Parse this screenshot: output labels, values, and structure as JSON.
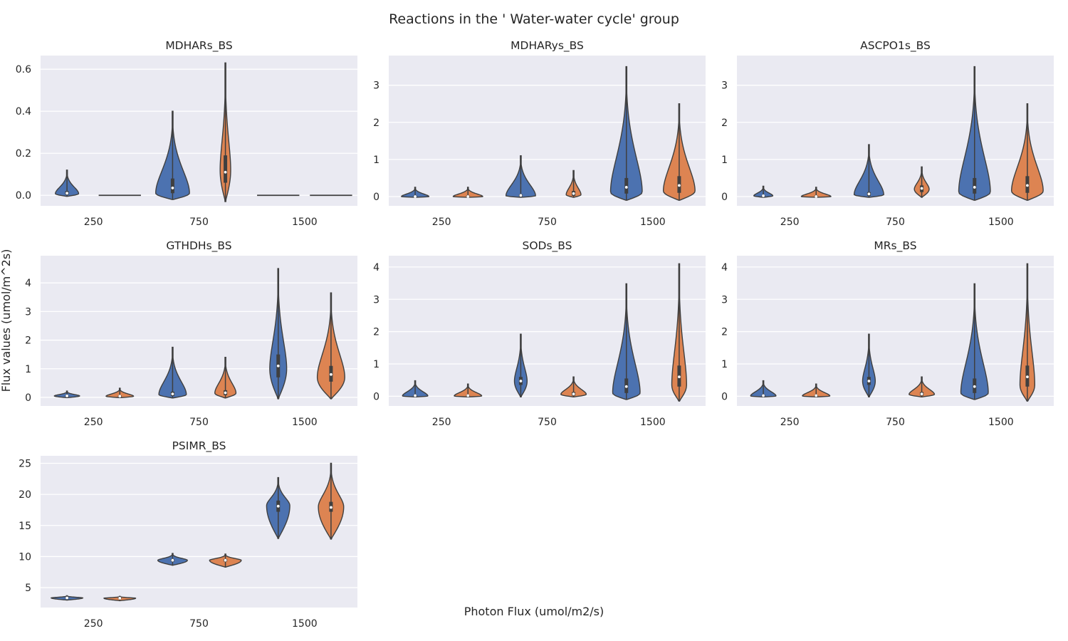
{
  "figure": {
    "title": "Reactions in the ' Water-water cycle' group",
    "xlabel": "Photon Flux (umol/m2/s)",
    "ylabel": "Flux values (umol/m^2s)"
  },
  "colors": {
    "blue": "#4c72b0",
    "orange": "#dd8452",
    "panel_bg": "#eaeaf2",
    "grid": "#ffffff",
    "line": "#3f3f3f"
  },
  "chart_data": [
    {
      "type": "violin",
      "title": "MDHARs_BS",
      "categories": [
        "250",
        "750",
        "1500"
      ],
      "ylim": [
        -0.05,
        0.665
      ],
      "yticks": [
        0.0,
        0.2,
        0.4,
        0.6
      ],
      "ytick_labels": [
        "0.0",
        "0.2",
        "0.4",
        "0.6"
      ],
      "series": [
        {
          "color": "blue",
          "values": [
            {
              "min": -0.005,
              "max": 0.12,
              "median": 0.01,
              "q1": 0.003,
              "q3": 0.02,
              "mode": 0.008,
              "width": 0.55
            },
            {
              "min": -0.02,
              "max": 0.4,
              "median": 0.035,
              "q1": 0.01,
              "q3": 0.08,
              "mode": 0.01,
              "width": 0.8
            },
            {
              "min": 0.0,
              "max": 0.0,
              "median": 0.0,
              "q1": 0.0,
              "q3": 0.0,
              "mode": 0.0,
              "width": 0.0
            }
          ]
        },
        {
          "color": "orange",
          "values": [
            {
              "min": 0.0,
              "max": 0.0,
              "median": 0.0,
              "q1": 0.0,
              "q3": 0.0,
              "mode": 0.0,
              "width": 0.0
            },
            {
              "min": -0.03,
              "max": 0.63,
              "median": 0.11,
              "q1": 0.06,
              "q3": 0.19,
              "mode": 0.12,
              "width": 0.25
            },
            {
              "min": 0.0,
              "max": 0.0,
              "median": 0.0,
              "q1": 0.0,
              "q3": 0.0,
              "mode": 0.0,
              "width": 0.0
            }
          ]
        }
      ]
    },
    {
      "type": "violin",
      "title": "MDHARys_BS",
      "categories": [
        "250",
        "750",
        "1500"
      ],
      "ylim": [
        -0.25,
        3.8
      ],
      "yticks": [
        0,
        1,
        2,
        3
      ],
      "ytick_labels": [
        "0",
        "1",
        "2",
        "3"
      ],
      "series": [
        {
          "color": "blue",
          "values": [
            {
              "min": -0.02,
              "max": 0.25,
              "median": 0.0,
              "q1": 0.0,
              "q3": 0.02,
              "mode": 0.0,
              "width": 0.65
            },
            {
              "min": -0.02,
              "max": 1.1,
              "median": 0.03,
              "q1": 0.0,
              "q3": 0.06,
              "mode": 0.02,
              "width": 0.7
            },
            {
              "min": -0.1,
              "max": 3.5,
              "median": 0.25,
              "q1": 0.08,
              "q3": 0.5,
              "mode": 0.12,
              "width": 0.75
            }
          ]
        },
        {
          "color": "orange",
          "values": [
            {
              "min": -0.02,
              "max": 0.25,
              "median": 0.0,
              "q1": 0.0,
              "q3": 0.02,
              "mode": 0.0,
              "width": 0.7
            },
            {
              "min": -0.02,
              "max": 0.7,
              "median": 0.08,
              "q1": 0.02,
              "q3": 0.15,
              "mode": 0.05,
              "width": 0.35
            },
            {
              "min": -0.1,
              "max": 2.5,
              "median": 0.3,
              "q1": 0.1,
              "q3": 0.55,
              "mode": 0.15,
              "width": 0.75
            }
          ]
        }
      ]
    },
    {
      "type": "violin",
      "title": "ASCPO1s_BS",
      "categories": [
        "250",
        "750",
        "1500"
      ],
      "ylim": [
        -0.25,
        3.8
      ],
      "yticks": [
        0,
        1,
        2,
        3
      ],
      "ytick_labels": [
        "0",
        "1",
        "2",
        "3"
      ],
      "series": [
        {
          "color": "blue",
          "values": [
            {
              "min": -0.02,
              "max": 0.28,
              "median": 0.02,
              "q1": 0.0,
              "q3": 0.04,
              "mode": 0.02,
              "width": 0.45
            },
            {
              "min": -0.02,
              "max": 1.4,
              "median": 0.07,
              "q1": 0.02,
              "q3": 0.12,
              "mode": 0.05,
              "width": 0.7
            },
            {
              "min": -0.1,
              "max": 3.5,
              "median": 0.25,
              "q1": 0.08,
              "q3": 0.5,
              "mode": 0.12,
              "width": 0.75
            }
          ]
        },
        {
          "color": "orange",
          "values": [
            {
              "min": -0.02,
              "max": 0.25,
              "median": 0.0,
              "q1": 0.0,
              "q3": 0.02,
              "mode": 0.0,
              "width": 0.7
            },
            {
              "min": -0.02,
              "max": 0.8,
              "median": 0.22,
              "q1": 0.12,
              "q3": 0.3,
              "mode": 0.2,
              "width": 0.35
            },
            {
              "min": -0.1,
              "max": 2.5,
              "median": 0.3,
              "q1": 0.1,
              "q3": 0.55,
              "mode": 0.15,
              "width": 0.75
            }
          ]
        }
      ]
    },
    {
      "type": "violin",
      "title": "GTHDHs_BS",
      "categories": [
        "250",
        "750",
        "1500"
      ],
      "ylim": [
        -0.3,
        4.95
      ],
      "yticks": [
        0,
        1,
        2,
        3,
        4
      ],
      "ytick_labels": [
        "0",
        "1",
        "2",
        "3",
        "4"
      ],
      "series": [
        {
          "color": "blue",
          "values": [
            {
              "min": -0.01,
              "max": 0.22,
              "median": 0.05,
              "q1": 0.02,
              "q3": 0.08,
              "mode": 0.05,
              "width": 0.6
            },
            {
              "min": -0.02,
              "max": 1.75,
              "median": 0.12,
              "q1": 0.05,
              "q3": 0.2,
              "mode": 0.1,
              "width": 0.65
            },
            {
              "min": -0.05,
              "max": 4.5,
              "median": 1.1,
              "q1": 0.7,
              "q3": 1.5,
              "mode": 1.0,
              "width": 0.4
            }
          ]
        },
        {
          "color": "orange",
          "values": [
            {
              "min": -0.01,
              "max": 0.32,
              "median": 0.04,
              "q1": 0.01,
              "q3": 0.07,
              "mode": 0.04,
              "width": 0.65
            },
            {
              "min": -0.02,
              "max": 1.4,
              "median": 0.16,
              "q1": 0.08,
              "q3": 0.25,
              "mode": 0.15,
              "width": 0.5
            },
            {
              "min": -0.05,
              "max": 3.65,
              "median": 0.8,
              "q1": 0.55,
              "q3": 1.1,
              "mode": 0.7,
              "width": 0.65
            }
          ]
        }
      ]
    },
    {
      "type": "violin",
      "title": "SODs_BS",
      "categories": [
        "250",
        "750",
        "1500"
      ],
      "ylim": [
        -0.3,
        4.35
      ],
      "yticks": [
        0,
        1,
        2,
        3,
        4
      ],
      "ytick_labels": [
        "0",
        "1",
        "2",
        "3",
        "4"
      ],
      "series": [
        {
          "color": "blue",
          "values": [
            {
              "min": -0.02,
              "max": 0.48,
              "median": 0.02,
              "q1": 0.0,
              "q3": 0.05,
              "mode": 0.01,
              "width": 0.6
            },
            {
              "min": -0.02,
              "max": 1.92,
              "median": 0.47,
              "q1": 0.35,
              "q3": 0.6,
              "mode": 0.47,
              "width": 0.3
            },
            {
              "min": -0.1,
              "max": 3.48,
              "median": 0.3,
              "q1": 0.1,
              "q3": 0.55,
              "mode": 0.1,
              "width": 0.65
            }
          ]
        },
        {
          "color": "orange",
          "values": [
            {
              "min": -0.02,
              "max": 0.38,
              "median": 0.02,
              "q1": 0.0,
              "q3": 0.04,
              "mode": 0.01,
              "width": 0.65
            },
            {
              "min": -0.02,
              "max": 0.6,
              "median": 0.07,
              "q1": 0.02,
              "q3": 0.13,
              "mode": 0.06,
              "width": 0.6
            },
            {
              "min": -0.15,
              "max": 4.1,
              "median": 0.6,
              "q1": 0.3,
              "q3": 0.95,
              "mode": 0.35,
              "width": 0.35
            }
          ]
        }
      ]
    },
    {
      "type": "violin",
      "title": "MRs_BS",
      "categories": [
        "250",
        "750",
        "1500"
      ],
      "ylim": [
        -0.3,
        4.35
      ],
      "yticks": [
        0,
        1,
        2,
        3,
        4
      ],
      "ytick_labels": [
        "0",
        "1",
        "2",
        "3",
        "4"
      ],
      "series": [
        {
          "color": "blue",
          "values": [
            {
              "min": -0.02,
              "max": 0.48,
              "median": 0.02,
              "q1": 0.0,
              "q3": 0.05,
              "mode": 0.01,
              "width": 0.6
            },
            {
              "min": -0.02,
              "max": 1.92,
              "median": 0.47,
              "q1": 0.35,
              "q3": 0.6,
              "mode": 0.47,
              "width": 0.3
            },
            {
              "min": -0.1,
              "max": 3.48,
              "median": 0.3,
              "q1": 0.1,
              "q3": 0.55,
              "mode": 0.1,
              "width": 0.65
            }
          ]
        },
        {
          "color": "orange",
          "values": [
            {
              "min": -0.02,
              "max": 0.38,
              "median": 0.02,
              "q1": 0.0,
              "q3": 0.04,
              "mode": 0.01,
              "width": 0.65
            },
            {
              "min": -0.02,
              "max": 0.6,
              "median": 0.07,
              "q1": 0.02,
              "q3": 0.13,
              "mode": 0.06,
              "width": 0.6
            },
            {
              "min": -0.15,
              "max": 4.1,
              "median": 0.6,
              "q1": 0.3,
              "q3": 0.95,
              "mode": 0.35,
              "width": 0.35
            }
          ]
        }
      ]
    },
    {
      "type": "violin",
      "title": "PSIMR_BS",
      "categories": [
        "250",
        "750",
        "1500"
      ],
      "ylim": [
        1.8,
        26.2
      ],
      "yticks": [
        5,
        10,
        15,
        20,
        25
      ],
      "ytick_labels": [
        "5",
        "10",
        "15",
        "20",
        "25"
      ],
      "series": [
        {
          "color": "blue",
          "values": [
            {
              "min": 3.0,
              "max": 3.7,
              "median": 3.35,
              "q1": 3.25,
              "q3": 3.45,
              "mode": 3.35,
              "width": 0.75
            },
            {
              "min": 8.6,
              "max": 10.5,
              "median": 9.4,
              "q1": 9.2,
              "q3": 9.6,
              "mode": 9.4,
              "width": 0.7
            },
            {
              "min": 12.9,
              "max": 22.7,
              "median": 18.1,
              "q1": 17.2,
              "q3": 19.0,
              "mode": 18.2,
              "width": 0.55
            }
          ]
        },
        {
          "color": "orange",
          "values": [
            {
              "min": 2.9,
              "max": 3.6,
              "median": 3.3,
              "q1": 3.2,
              "q3": 3.4,
              "mode": 3.3,
              "width": 0.75
            },
            {
              "min": 8.3,
              "max": 10.4,
              "median": 9.4,
              "q1": 9.2,
              "q3": 9.6,
              "mode": 9.4,
              "width": 0.75
            },
            {
              "min": 12.8,
              "max": 25.0,
              "median": 17.9,
              "q1": 17.2,
              "q3": 18.8,
              "mode": 18.0,
              "width": 0.6
            }
          ]
        }
      ]
    }
  ]
}
